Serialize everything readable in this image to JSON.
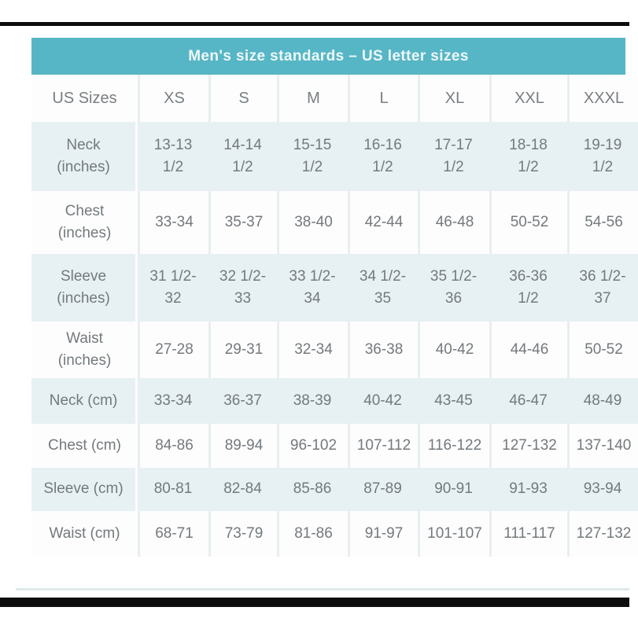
{
  "table": {
    "title": "Men's size standards – US letter sizes",
    "columns": [
      "US Sizes",
      "XS",
      "S",
      "M",
      "L",
      "XL",
      "XXL",
      "XXXL"
    ],
    "rows": [
      {
        "label": "Neck\n(inches)",
        "values": [
          "13-13\n1/2",
          "14-14\n1/2",
          "15-15\n1/2",
          "16-16\n1/2",
          "17-17\n1/2",
          "18-18\n1/2",
          "19-19\n1/2"
        ]
      },
      {
        "label": "Chest\n(inches)",
        "values": [
          "33-34",
          "35-37",
          "38-40",
          "42-44",
          "46-48",
          "50-52",
          "54-56"
        ]
      },
      {
        "label": "Sleeve\n(inches)",
        "values": [
          "31 1/2-\n32",
          "32 1/2-\n33",
          "33 1/2-\n34",
          "34 1/2-\n35",
          "35 1/2-\n36",
          "36-36\n1/2",
          "36 1/2-\n37"
        ]
      },
      {
        "label": "Waist\n(inches)",
        "values": [
          "27-28",
          "29-31",
          "32-34",
          "36-38",
          "40-42",
          "44-46",
          "50-52"
        ]
      },
      {
        "label": "Neck (cm)",
        "values": [
          "33-34",
          "36-37",
          "38-39",
          "40-42",
          "43-45",
          "46-47",
          "48-49"
        ]
      },
      {
        "label": "Chest (cm)",
        "values": [
          "84-86",
          "89-94",
          "96-102",
          "107-112",
          "116-122",
          "127-132",
          "137-140"
        ]
      },
      {
        "label": "Sleeve (cm)",
        "values": [
          "80-81",
          "82-84",
          "85-86",
          "87-89",
          "90-91",
          "91-93",
          "93-94"
        ]
      },
      {
        "label": "Waist (cm)",
        "values": [
          "68-71",
          "73-79",
          "81-86",
          "91-97",
          "101-107",
          "111-117",
          "127-132"
        ]
      }
    ]
  },
  "colors": {
    "header_teal": "#57b6c6",
    "header_text": "#eef8f9",
    "alt_row_blue": "#e7f0f3",
    "text_gray": "#73797d",
    "bar_black": "#0d0d0d"
  },
  "chart_data": {
    "type": "table",
    "title": "Men's size standards – US letter sizes",
    "columns": [
      "US Sizes",
      "XS",
      "S",
      "M",
      "L",
      "XL",
      "XXL",
      "XXXL"
    ],
    "rows": [
      [
        "Neck (inches)",
        "13-13 1/2",
        "14-14 1/2",
        "15-15 1/2",
        "16-16 1/2",
        "17-17 1/2",
        "18-18 1/2",
        "19-19 1/2"
      ],
      [
        "Chest (inches)",
        "33-34",
        "35-37",
        "38-40",
        "42-44",
        "46-48",
        "50-52",
        "54-56"
      ],
      [
        "Sleeve (inches)",
        "31 1/2-32",
        "32 1/2-33",
        "33 1/2-34",
        "34 1/2-35",
        "35 1/2-36",
        "36-36 1/2",
        "36 1/2-37"
      ],
      [
        "Waist (inches)",
        "27-28",
        "29-31",
        "32-34",
        "36-38",
        "40-42",
        "44-46",
        "50-52"
      ],
      [
        "Neck (cm)",
        "33-34",
        "36-37",
        "38-39",
        "40-42",
        "43-45",
        "46-47",
        "48-49"
      ],
      [
        "Chest (cm)",
        "84-86",
        "89-94",
        "96-102",
        "107-112",
        "116-122",
        "127-132",
        "137-140"
      ],
      [
        "Sleeve (cm)",
        "80-81",
        "82-84",
        "85-86",
        "87-89",
        "90-91",
        "91-93",
        "93-94"
      ],
      [
        "Waist (cm)",
        "68-71",
        "73-79",
        "81-86",
        "91-97",
        "101-107",
        "111-117",
        "127-132"
      ]
    ]
  }
}
